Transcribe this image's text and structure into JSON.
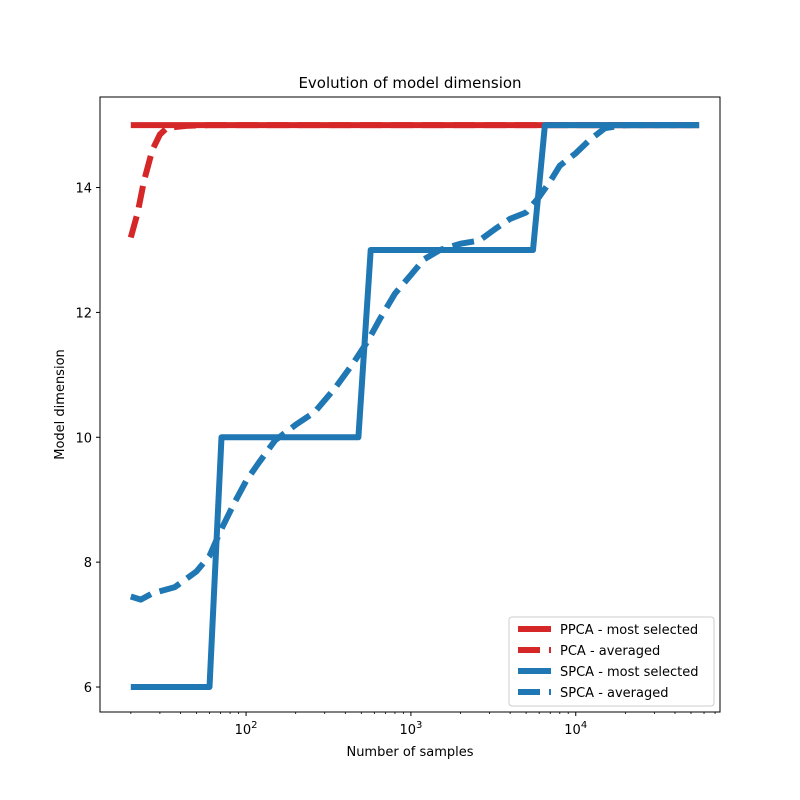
{
  "chart_data": {
    "type": "line",
    "title": "Evolution of model dimension",
    "xlabel": "Number of samples",
    "ylabel": "Model dimension",
    "xscale": "log",
    "xlim": [
      13,
      75000
    ],
    "ylim": [
      5.6,
      15.45
    ],
    "xticks": [
      {
        "value": 100,
        "base": "10",
        "exp": "2"
      },
      {
        "value": 1000,
        "base": "10",
        "exp": "3"
      },
      {
        "value": 10000,
        "base": "10",
        "exp": "4"
      }
    ],
    "yticks": [
      6,
      8,
      10,
      12,
      14
    ],
    "grid": false,
    "legend_position": "lower-right",
    "series": [
      {
        "name": "PPCA - most selected",
        "color": "#d62728",
        "style": "solid",
        "x": [
          20,
          56000
        ],
        "y": [
          15,
          15
        ]
      },
      {
        "name": "PCA - averaged",
        "color": "#d62728",
        "style": "dashed",
        "x": [
          20,
          22,
          24,
          27,
          30,
          33,
          37,
          45,
          60,
          100,
          1000,
          10000,
          56000
        ],
        "y": [
          13.2,
          13.6,
          14.1,
          14.6,
          14.85,
          14.95,
          14.97,
          14.99,
          15,
          15,
          15,
          15,
          15
        ]
      },
      {
        "name": "SPCA - most selected",
        "color": "#1f77b4",
        "style": "solid",
        "x": [
          20,
          60,
          71,
          480,
          570,
          5500,
          6500,
          56000
        ],
        "y": [
          6,
          6,
          10,
          10,
          13,
          13,
          15,
          15
        ]
      },
      {
        "name": "SPCA - averaged",
        "color": "#1f77b4",
        "style": "dashed",
        "x": [
          20,
          23,
          27,
          37,
          50,
          60,
          70,
          85,
          100,
          120,
          150,
          200,
          260,
          350,
          450,
          550,
          650,
          800,
          1000,
          1200,
          1500,
          2000,
          2600,
          3300,
          4000,
          5000,
          6000,
          7000,
          8000,
          10000,
          12000,
          15000,
          20000,
          30000,
          56000
        ],
        "y": [
          7.45,
          7.4,
          7.5,
          7.6,
          7.85,
          8.1,
          8.5,
          8.95,
          9.3,
          9.6,
          9.95,
          10.2,
          10.4,
          10.8,
          11.2,
          11.55,
          11.9,
          12.3,
          12.6,
          12.85,
          13.0,
          13.1,
          13.15,
          13.35,
          13.5,
          13.6,
          13.85,
          14.1,
          14.35,
          14.55,
          14.75,
          14.95,
          15.0,
          15.0,
          15.0
        ]
      }
    ]
  }
}
